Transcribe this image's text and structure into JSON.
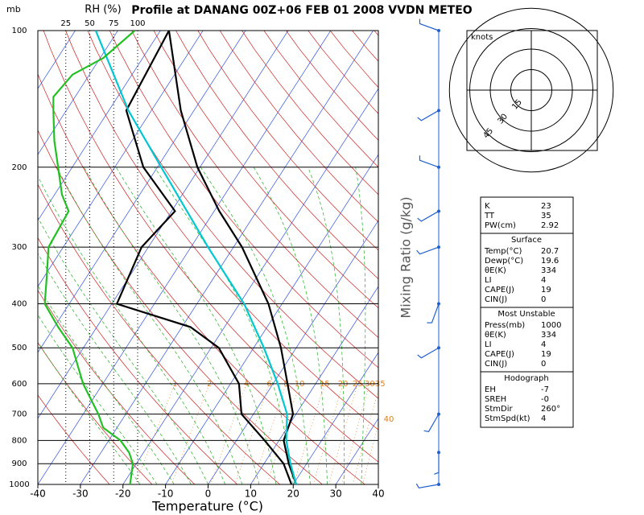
{
  "chart_data": {
    "type": "skewt",
    "title": "Profile at DANANG 00Z+06 FEB 01 2008 VVDN METEO",
    "pressure_unit_label": "mb",
    "rh_axis_label": "RH (%)",
    "x_label": "Temperature (°C)",
    "mixing_ratio_axis_label": "Mixing Ratio (g/kg)",
    "xlim": [
      -40,
      40
    ],
    "xticks": [
      -40,
      -30,
      -20,
      -10,
      0,
      10,
      20,
      30,
      40
    ],
    "ylim": [
      1000,
      100
    ],
    "yticks": [
      100,
      200,
      300,
      400,
      500,
      600,
      700,
      800,
      900,
      1000
    ],
    "rhlim": [
      0,
      100
    ],
    "rhticks": [
      25,
      50,
      75,
      100
    ],
    "log_scale": true,
    "mixing_ratio_labels": [
      1,
      2,
      4,
      6,
      8,
      10,
      15,
      20,
      25,
      30,
      35,
      40
    ],
    "series": [
      {
        "name": "Temperature",
        "color": "#000000",
        "p": [
          1000,
          900,
          800,
          700,
          600,
          500,
          400,
          300,
          250,
          200,
          150,
          100
        ],
        "values": [
          20.7,
          15.8,
          11.1,
          9.3,
          3.4,
          -3.6,
          -13.2,
          -28.0,
          -38.8,
          -50.6,
          -63.1,
          -78.0
        ]
      },
      {
        "name": "Dewpoint",
        "color": "#000000",
        "p": [
          1000,
          900,
          800,
          700,
          600,
          500,
          450,
          400,
          300,
          250,
          200,
          150,
          100
        ],
        "values": [
          19.6,
          14.6,
          6.6,
          -2.8,
          -8.0,
          -18.2,
          -28.0,
          -48.8,
          -51.6,
          -49.2,
          -63.3,
          -75.9,
          -78.0
        ]
      },
      {
        "name": "Parcel",
        "color": "#00c8d2",
        "p": [
          1000,
          900,
          800,
          700,
          600,
          500,
          400,
          300,
          200,
          150,
          100
        ],
        "values": [
          20.7,
          16.2,
          11.7,
          7.9,
          1.1,
          -7.6,
          -18.9,
          -36.0,
          -59.1,
          -75.4,
          -95.2
        ]
      },
      {
        "name": "RH",
        "axis": "rh",
        "color": "#22c022",
        "p": [
          1000,
          900,
          850,
          800,
          750,
          700,
          600,
          500,
          450,
          400,
          350,
          300,
          250,
          230,
          200,
          175,
          150,
          140,
          125,
          115,
          100
        ],
        "values": [
          92,
          95,
          91,
          82,
          64,
          59,
          43,
          32,
          17,
          3,
          5,
          7,
          28,
          21,
          17,
          13,
          12,
          12,
          32,
          64,
          97
        ]
      }
    ],
    "winds": [
      {
        "p": 100,
        "dir": 290,
        "spd": 5
      },
      {
        "p": 150,
        "dir": 240,
        "spd": 5
      },
      {
        "p": 200,
        "dir": 290,
        "spd": 5
      },
      {
        "p": 250,
        "dir": 240,
        "spd": 5
      },
      {
        "p": 300,
        "dir": 250,
        "spd": 5
      },
      {
        "p": 400,
        "dir": 200,
        "spd": 5
      },
      {
        "p": 500,
        "dir": 240,
        "spd": 5
      },
      {
        "p": 700,
        "dir": 210,
        "spd": 5
      },
      {
        "p": 850,
        "dir": 180,
        "spd": 5
      },
      {
        "p": 1000,
        "dir": 260,
        "spd": 5
      }
    ],
    "hodograph": {
      "label": "knots",
      "rings": [
        15,
        30,
        45
      ]
    },
    "indices": {
      "rows": [
        [
          "K",
          "23"
        ],
        [
          "TT",
          "35"
        ],
        [
          "PW(cm)",
          "2.92"
        ]
      ],
      "sections": [
        {
          "title": "Surface",
          "rows": [
            [
              "Temp(°C)",
              "20.7"
            ],
            [
              "Dewp(°C)",
              "19.6"
            ],
            [
              "θE(K)",
              "334"
            ],
            [
              "LI",
              "4"
            ],
            [
              "CAPE(J)",
              "19"
            ],
            [
              "CIN(J)",
              "0"
            ]
          ]
        },
        {
          "title": "Most Unstable",
          "rows": [
            [
              "Press(mb)",
              "1000"
            ],
            [
              "θE(K)",
              "334"
            ],
            [
              "LI",
              "4"
            ],
            [
              "CAPE(J)",
              "19"
            ],
            [
              "CIN(J)",
              "0"
            ]
          ]
        },
        {
          "title": "Hodograph",
          "rows": [
            [
              "EH",
              "-7"
            ],
            [
              "SREH",
              "-0"
            ],
            [
              "StmDir",
              "260°"
            ],
            [
              "StmSpd(kt)",
              "4"
            ]
          ]
        }
      ]
    }
  }
}
